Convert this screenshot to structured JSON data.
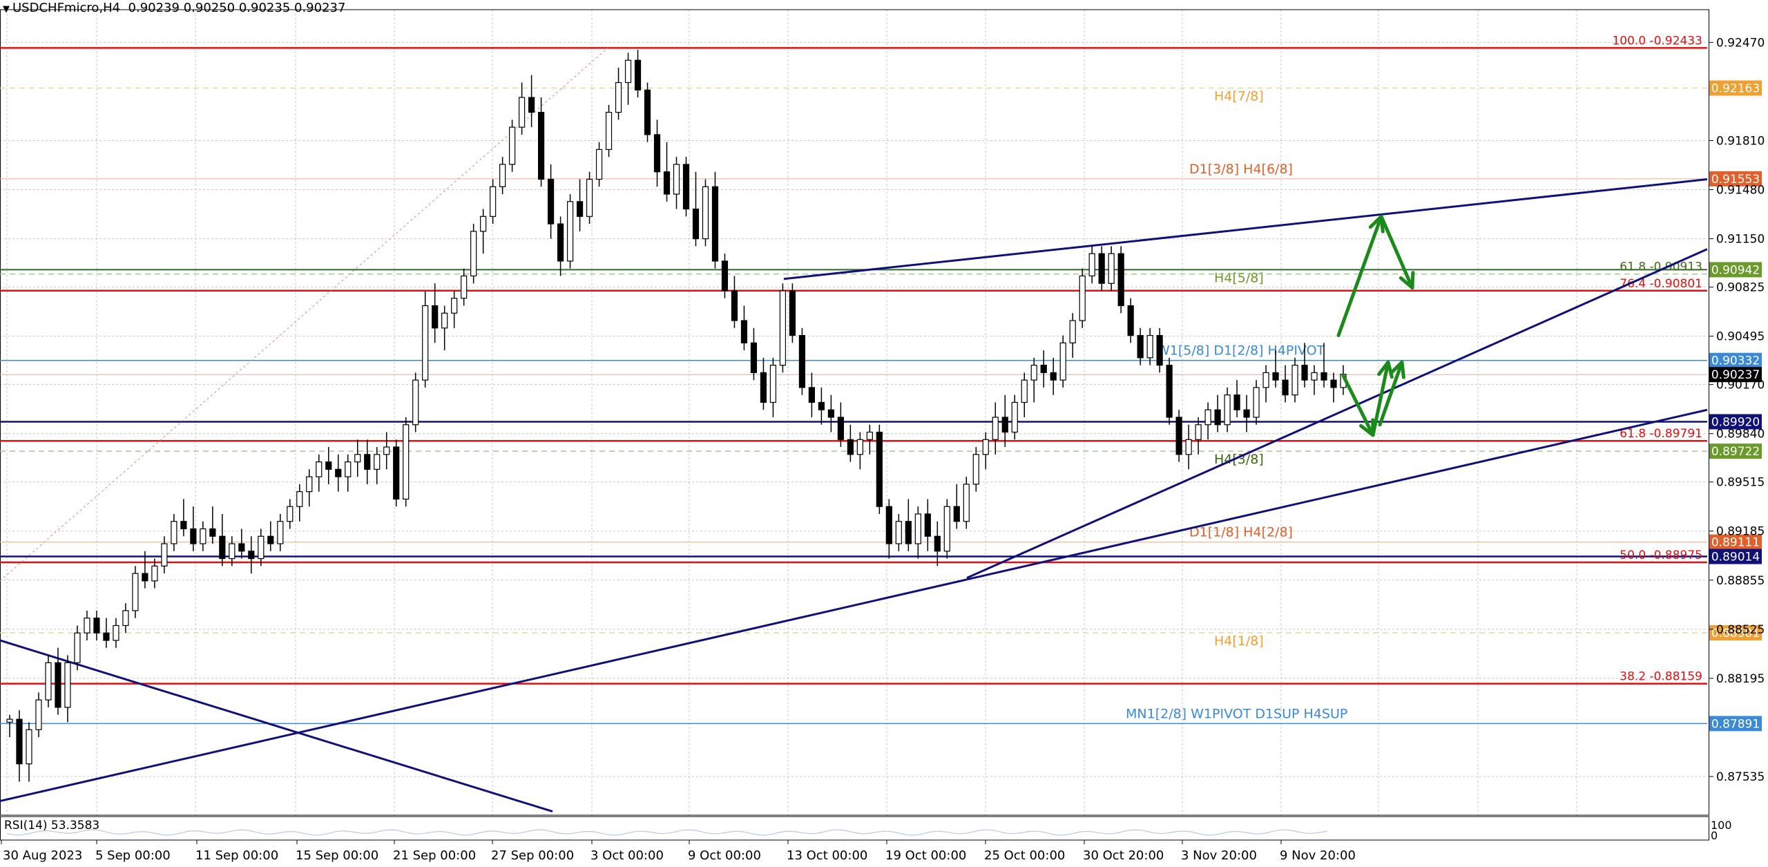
{
  "header": {
    "symbol": "USDCHFmicro,H4",
    "ohlc": "0.90239 0.90250 0.90235 0.90237"
  },
  "rsi": {
    "label": "RSI(14) 53.3583",
    "scale_top": "100",
    "scale_bottom": "0"
  },
  "colors": {
    "background": "#ffffff",
    "grid": "#c8c8c8",
    "candle": "#000000",
    "fib_red": "#e01010",
    "murrey_orange": "#f0a030",
    "murrey_orange_dark": "#e0602a",
    "murrey_green": "#6a9a2a",
    "murrey_blue": "#3a8ad8",
    "trend_navy": "#10107a",
    "arrow_green": "#1a8a1a"
  },
  "chart_data": {
    "type": "candlestick",
    "ylim": [
      0.87275,
      0.9269
    ],
    "y_ticks": [
      "0.92470",
      "0.91810",
      "0.91480",
      "0.91150",
      "0.90825",
      "0.90495",
      "0.90170",
      "0.89840",
      "0.89515",
      "0.89185",
      "0.88855",
      "0.88525",
      "0.88195",
      "0.87535"
    ],
    "x_labels": [
      "30 Aug 2023",
      "5 Sep 00:00",
      "11 Sep 00:00",
      "15 Sep 00:00",
      "21 Sep 00:00",
      "27 Sep 00:00",
      "3 Oct 00:00",
      "9 Oct 00:00",
      "13 Oct 00:00",
      "19 Oct 00:00",
      "25 Oct 00:00",
      "30 Oct 20:00",
      "3 Nov 20:00",
      "9 Nov 20:00"
    ],
    "current_price": 0.90237,
    "levels": [
      {
        "price": 0.92433,
        "style": "fib",
        "label": "100.0 -0.92433",
        "tag": ""
      },
      {
        "price": 0.92163,
        "style": "dash-orange",
        "label": "H4[7/8]",
        "tag": "0.92163"
      },
      {
        "price": 0.91553,
        "style": "thin-orange",
        "label": "D1[3/8] H4[6/8]",
        "tag": "0.91553"
      },
      {
        "price": 0.90942,
        "style": "green",
        "label": "H4[5/8]",
        "tag": "0.90942"
      },
      {
        "price": 0.90913,
        "style": "dash-green",
        "label": "61.8 -0.90913",
        "tag": ""
      },
      {
        "price": 0.90801,
        "style": "fib",
        "label": "76.4 -0.90801",
        "tag": ""
      },
      {
        "price": 0.90332,
        "style": "blue",
        "label": "W1[5/8] D1[2/8] H4PIVOT",
        "tag": "0.90332"
      },
      {
        "price": 0.8992,
        "style": "navy",
        "label": "",
        "tag": "0.89920"
      },
      {
        "price": 0.89791,
        "style": "fib",
        "label": "61.8 -0.89791",
        "tag": ""
      },
      {
        "price": 0.89722,
        "style": "dash-green",
        "label": "H4[3/8]",
        "tag": "0.89722"
      },
      {
        "price": 0.89111,
        "style": "thin-orange",
        "label": "D1[1/8] H4[2/8]",
        "tag": "0.89111"
      },
      {
        "price": 0.89014,
        "style": "navy",
        "label": "",
        "tag": "0.89014"
      },
      {
        "price": 0.88975,
        "style": "fib",
        "label": "50.0 -0.88975",
        "tag": ""
      },
      {
        "price": 0.88501,
        "style": "dash-orange",
        "label": "H4[1/8]",
        "tag": "0.88501"
      },
      {
        "price": 0.88159,
        "style": "fib",
        "label": "38.2 -0.88159",
        "tag": ""
      },
      {
        "price": 0.87891,
        "style": "blue",
        "label": "MN1[2/8] W1PIVOT D1SUP H4SUP",
        "tag": "0.87891"
      }
    ],
    "trendlines": [
      {
        "x1": "30 Aug 2023",
        "y1": 0.8845,
        "x2": "28 Sep",
        "y2": 0.873
      },
      {
        "x1": "30 Aug 2023",
        "y1": 0.8737,
        "x2": "15 Nov",
        "y2": 0.9
      },
      {
        "x1": "21 Oct",
        "y1": 0.8887,
        "x2": "15 Nov",
        "y2": 0.9108
      },
      {
        "x1": "12 Oct",
        "y1": 0.9088,
        "x2": "15 Nov",
        "y2": 0.9155
      }
    ],
    "scenario_arrows": [
      {
        "from": 0.905,
        "to": 0.913,
        "then": 0.9082
      },
      {
        "from": 0.9023,
        "to": 0.8983,
        "then": 0.9032
      }
    ],
    "candles": [
      [
        0.879,
        0.8795,
        0.878,
        0.8792
      ],
      [
        0.8792,
        0.8798,
        0.875,
        0.8762
      ],
      [
        0.8762,
        0.879,
        0.875,
        0.8785
      ],
      [
        0.8785,
        0.881,
        0.878,
        0.8805
      ],
      [
        0.8805,
        0.8835,
        0.88,
        0.883
      ],
      [
        0.883,
        0.884,
        0.8795,
        0.88
      ],
      [
        0.88,
        0.8835,
        0.879,
        0.883
      ],
      [
        0.883,
        0.8855,
        0.8825,
        0.885
      ],
      [
        0.885,
        0.8865,
        0.8845,
        0.886
      ],
      [
        0.886,
        0.8865,
        0.8845,
        0.885
      ],
      [
        0.885,
        0.886,
        0.884,
        0.8845
      ],
      [
        0.8845,
        0.886,
        0.884,
        0.8855
      ],
      [
        0.8855,
        0.887,
        0.885,
        0.8865
      ],
      [
        0.8865,
        0.8895,
        0.886,
        0.889
      ],
      [
        0.889,
        0.8905,
        0.888,
        0.8885
      ],
      [
        0.8885,
        0.89,
        0.888,
        0.8895
      ],
      [
        0.8895,
        0.8915,
        0.889,
        0.891
      ],
      [
        0.891,
        0.893,
        0.8905,
        0.8925
      ],
      [
        0.8925,
        0.894,
        0.8915,
        0.892
      ],
      [
        0.892,
        0.8935,
        0.8905,
        0.891
      ],
      [
        0.891,
        0.8925,
        0.8905,
        0.892
      ],
      [
        0.892,
        0.8935,
        0.891,
        0.8915
      ],
      [
        0.8915,
        0.893,
        0.8895,
        0.89
      ],
      [
        0.89,
        0.8915,
        0.8895,
        0.891
      ],
      [
        0.891,
        0.892,
        0.89,
        0.8905
      ],
      [
        0.8905,
        0.8915,
        0.889,
        0.89
      ],
      [
        0.89,
        0.892,
        0.8895,
        0.8915
      ],
      [
        0.8915,
        0.8925,
        0.8905,
        0.891
      ],
      [
        0.891,
        0.893,
        0.8905,
        0.8925
      ],
      [
        0.8925,
        0.894,
        0.892,
        0.8935
      ],
      [
        0.8935,
        0.895,
        0.8925,
        0.8945
      ],
      [
        0.8945,
        0.896,
        0.8935,
        0.8955
      ],
      [
        0.8955,
        0.897,
        0.8945,
        0.8965
      ],
      [
        0.8965,
        0.8975,
        0.895,
        0.896
      ],
      [
        0.896,
        0.897,
        0.8945,
        0.8955
      ],
      [
        0.8955,
        0.897,
        0.8945,
        0.8965
      ],
      [
        0.8965,
        0.898,
        0.8955,
        0.897
      ],
      [
        0.897,
        0.898,
        0.895,
        0.896
      ],
      [
        0.896,
        0.8975,
        0.895,
        0.897
      ],
      [
        0.897,
        0.8985,
        0.896,
        0.8975
      ],
      [
        0.8975,
        0.898,
        0.8935,
        0.894
      ],
      [
        0.894,
        0.8995,
        0.8935,
        0.899
      ],
      [
        0.899,
        0.9025,
        0.8985,
        0.902
      ],
      [
        0.902,
        0.908,
        0.9015,
        0.907
      ],
      [
        0.907,
        0.9085,
        0.9045,
        0.9055
      ],
      [
        0.9055,
        0.907,
        0.904,
        0.9065
      ],
      [
        0.9065,
        0.908,
        0.9055,
        0.9075
      ],
      [
        0.9075,
        0.9095,
        0.907,
        0.909
      ],
      [
        0.909,
        0.9125,
        0.9085,
        0.912
      ],
      [
        0.912,
        0.9135,
        0.9105,
        0.913
      ],
      [
        0.913,
        0.9155,
        0.9125,
        0.915
      ],
      [
        0.915,
        0.917,
        0.9145,
        0.9165
      ],
      [
        0.9165,
        0.9195,
        0.916,
        0.919
      ],
      [
        0.919,
        0.922,
        0.9185,
        0.921
      ],
      [
        0.921,
        0.9225,
        0.919,
        0.92
      ],
      [
        0.92,
        0.921,
        0.915,
        0.9155
      ],
      [
        0.9155,
        0.9165,
        0.9115,
        0.9125
      ],
      [
        0.9125,
        0.913,
        0.909,
        0.91
      ],
      [
        0.91,
        0.9145,
        0.9095,
        0.914
      ],
      [
        0.914,
        0.9155,
        0.912,
        0.913
      ],
      [
        0.913,
        0.916,
        0.9125,
        0.9155
      ],
      [
        0.9155,
        0.918,
        0.915,
        0.9175
      ],
      [
        0.9175,
        0.9205,
        0.917,
        0.92
      ],
      [
        0.92,
        0.923,
        0.9195,
        0.922
      ],
      [
        0.922,
        0.924,
        0.9205,
        0.9235
      ],
      [
        0.9235,
        0.9242,
        0.921,
        0.9215
      ],
      [
        0.9215,
        0.922,
        0.918,
        0.9185
      ],
      [
        0.9185,
        0.9195,
        0.915,
        0.916
      ],
      [
        0.916,
        0.918,
        0.914,
        0.9145
      ],
      [
        0.9145,
        0.917,
        0.9135,
        0.9165
      ],
      [
        0.9165,
        0.917,
        0.913,
        0.9135
      ],
      [
        0.9135,
        0.916,
        0.911,
        0.9115
      ],
      [
        0.9115,
        0.9155,
        0.911,
        0.915
      ],
      [
        0.915,
        0.916,
        0.9095,
        0.91
      ],
      [
        0.91,
        0.9105,
        0.9075,
        0.908
      ],
      [
        0.908,
        0.909,
        0.9055,
        0.906
      ],
      [
        0.906,
        0.907,
        0.904,
        0.9045
      ],
      [
        0.9045,
        0.9055,
        0.902,
        0.9025
      ],
      [
        0.9025,
        0.9035,
        0.9,
        0.9005
      ],
      [
        0.9005,
        0.9035,
        0.8995,
        0.903
      ],
      [
        0.903,
        0.9085,
        0.9025,
        0.908
      ],
      [
        0.908,
        0.9085,
        0.9045,
        0.905
      ],
      [
        0.905,
        0.9055,
        0.901,
        0.9015
      ],
      [
        0.9015,
        0.9025,
        0.8995,
        0.9005
      ],
      [
        0.9005,
        0.9015,
        0.899,
        0.9
      ],
      [
        0.9,
        0.901,
        0.8985,
        0.8995
      ],
      [
        0.8995,
        0.9005,
        0.8975,
        0.898
      ],
      [
        0.898,
        0.899,
        0.8965,
        0.897
      ],
      [
        0.897,
        0.8985,
        0.896,
        0.898
      ],
      [
        0.898,
        0.899,
        0.897,
        0.8985
      ],
      [
        0.8985,
        0.899,
        0.893,
        0.8935
      ],
      [
        0.8935,
        0.894,
        0.89,
        0.891
      ],
      [
        0.891,
        0.893,
        0.8905,
        0.8925
      ],
      [
        0.8925,
        0.894,
        0.8905,
        0.891
      ],
      [
        0.891,
        0.8935,
        0.89,
        0.893
      ],
      [
        0.893,
        0.894,
        0.8905,
        0.8915
      ],
      [
        0.8915,
        0.8925,
        0.8895,
        0.8905
      ],
      [
        0.8905,
        0.894,
        0.89,
        0.8935
      ],
      [
        0.8935,
        0.895,
        0.892,
        0.8925
      ],
      [
        0.8925,
        0.8955,
        0.892,
        0.895
      ],
      [
        0.895,
        0.8975,
        0.8945,
        0.897
      ],
      [
        0.897,
        0.8985,
        0.896,
        0.898
      ],
      [
        0.898,
        0.9005,
        0.897,
        0.8995
      ],
      [
        0.8995,
        0.901,
        0.8975,
        0.8985
      ],
      [
        0.8985,
        0.901,
        0.898,
        0.9005
      ],
      [
        0.9005,
        0.9025,
        0.8995,
        0.902
      ],
      [
        0.902,
        0.9035,
        0.9005,
        0.903
      ],
      [
        0.903,
        0.904,
        0.9015,
        0.9025
      ],
      [
        0.9025,
        0.9035,
        0.901,
        0.902
      ],
      [
        0.902,
        0.905,
        0.9015,
        0.9045
      ],
      [
        0.9045,
        0.9065,
        0.9035,
        0.906
      ],
      [
        0.906,
        0.9095,
        0.9055,
        0.909
      ],
      [
        0.909,
        0.911,
        0.9085,
        0.9105
      ],
      [
        0.9105,
        0.911,
        0.908,
        0.9085
      ],
      [
        0.9085,
        0.911,
        0.908,
        0.9105
      ],
      [
        0.9105,
        0.911,
        0.9065,
        0.907
      ],
      [
        0.907,
        0.9075,
        0.9045,
        0.905
      ],
      [
        0.905,
        0.9055,
        0.903,
        0.9035
      ],
      [
        0.9035,
        0.9055,
        0.903,
        0.905
      ],
      [
        0.905,
        0.9055,
        0.9025,
        0.903
      ],
      [
        0.903,
        0.9035,
        0.899,
        0.8995
      ],
      [
        0.8995,
        0.9,
        0.8965,
        0.897
      ],
      [
        0.897,
        0.899,
        0.896,
        0.898
      ],
      [
        0.898,
        0.8995,
        0.897,
        0.899
      ],
      [
        0.899,
        0.9005,
        0.898,
        0.9
      ],
      [
        0.9,
        0.901,
        0.8985,
        0.899
      ],
      [
        0.899,
        0.9015,
        0.8985,
        0.901
      ],
      [
        0.901,
        0.902,
        0.8995,
        0.9
      ],
      [
        0.9,
        0.901,
        0.8985,
        0.8995
      ],
      [
        0.8995,
        0.902,
        0.899,
        0.9015
      ],
      [
        0.9015,
        0.903,
        0.9005,
        0.9025
      ],
      [
        0.9025,
        0.904,
        0.9015,
        0.902
      ],
      [
        0.902,
        0.903,
        0.9005,
        0.901
      ],
      [
        0.901,
        0.9035,
        0.9005,
        0.903
      ],
      [
        0.903,
        0.9045,
        0.9015,
        0.902
      ],
      [
        0.902,
        0.903,
        0.901,
        0.9025
      ],
      [
        0.9025,
        0.9045,
        0.9015,
        0.902
      ],
      [
        0.902,
        0.9025,
        0.9005,
        0.9015
      ],
      [
        0.9015,
        0.903,
        0.901,
        0.90239
      ]
    ]
  }
}
